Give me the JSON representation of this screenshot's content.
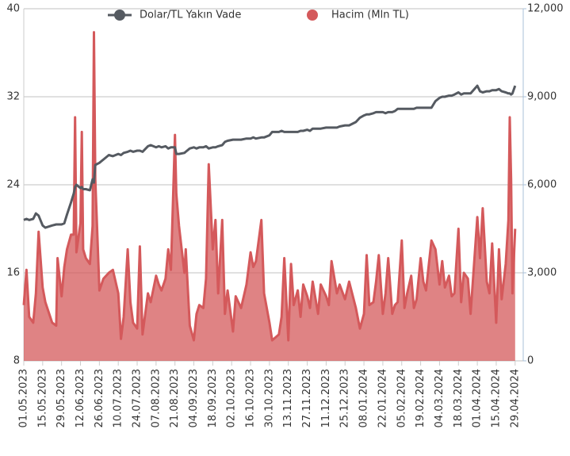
{
  "chart_data": {
    "type": "line-area",
    "x": [
      "01.05.2023",
      "03.05.2023",
      "05.05.2023",
      "08.05.2023",
      "10.05.2023",
      "12.05.2023",
      "15.05.2023",
      "17.05.2023",
      "22.05.2023",
      "25.05.2023",
      "26.05.2023",
      "29.05.2023",
      "31.05.2023",
      "02.06.2023",
      "05.06.2023",
      "07.06.2023",
      "08.06.2023",
      "09.06.2023",
      "12.06.2023",
      "13.06.2023",
      "14.06.2023",
      "16.06.2023",
      "19.06.2023",
      "21.06.2023",
      "22.06.2023",
      "23.06.2023",
      "26.06.2023",
      "29.06.2023",
      "03.07.2023",
      "06.07.2023",
      "10.07.2023",
      "12.07.2023",
      "14.07.2023",
      "17.07.2023",
      "19.07.2023",
      "21.07.2023",
      "24.07.2023",
      "26.07.2023",
      "28.07.2023",
      "01.08.2023",
      "03.08.2023",
      "07.08.2023",
      "09.08.2023",
      "11.08.2023",
      "14.08.2023",
      "16.08.2023",
      "18.08.2023",
      "21.08.2023",
      "22.08.2023",
      "24.08.2023",
      "28.08.2023",
      "29.08.2023",
      "01.09.2023",
      "04.09.2023",
      "06.09.2023",
      "08.09.2023",
      "11.09.2023",
      "13.09.2023",
      "15.09.2023",
      "18.09.2023",
      "20.09.2023",
      "22.09.2023",
      "25.09.2023",
      "27.09.2023",
      "29.09.2023",
      "03.10.2023",
      "05.10.2023",
      "09.10.2023",
      "13.10.2023",
      "16.10.2023",
      "18.10.2023",
      "20.10.2023",
      "24.10.2023",
      "26.10.2023",
      "30.10.2023",
      "01.11.2023",
      "06.11.2023",
      "08.11.2023",
      "10.11.2023",
      "13.11.2023",
      "15.11.2023",
      "17.11.2023",
      "20.11.2023",
      "22.11.2023",
      "24.11.2023",
      "27.11.2023",
      "29.11.2023",
      "01.12.2023",
      "05.12.2023",
      "07.12.2023",
      "11.12.2023",
      "13.12.2023",
      "15.12.2023",
      "19.12.2023",
      "21.12.2023",
      "25.12.2023",
      "28.12.2023",
      "02.01.2024",
      "05.01.2024",
      "08.01.2024",
      "10.01.2024",
      "12.01.2024",
      "15.01.2024",
      "17.01.2024",
      "19.01.2024",
      "22.01.2024",
      "24.01.2024",
      "26.01.2024",
      "29.01.2024",
      "31.01.2024",
      "02.02.2024",
      "05.02.2024",
      "07.02.2024",
      "09.02.2024",
      "12.02.2024",
      "14.02.2024",
      "16.02.2024",
      "19.02.2024",
      "21.02.2024",
      "23.02.2024",
      "27.02.2024",
      "01.03.2024",
      "04.03.2024",
      "06.03.2024",
      "08.03.2024",
      "11.03.2024",
      "13.03.2024",
      "15.03.2024",
      "18.03.2024",
      "20.03.2024",
      "22.03.2024",
      "25.03.2024",
      "27.03.2024",
      "01.04.2024",
      "03.04.2024",
      "05.04.2024",
      "08.04.2024",
      "10.04.2024",
      "12.04.2024",
      "15.04.2024",
      "17.04.2024",
      "19.04.2024",
      "22.04.2024",
      "24.04.2024",
      "25.04.2024",
      "26.04.2024",
      "27.04.2024",
      "29.04.2024"
    ],
    "series": [
      {
        "name": "Dolar/TL Yakın Vade",
        "color": "#555a61",
        "values": [
          20.8,
          20.9,
          20.8,
          20.9,
          21.4,
          21.2,
          20.3,
          20.1,
          20.3,
          20.4,
          20.4,
          20.4,
          20.5,
          21.3,
          22.4,
          23.2,
          23.8,
          24.0,
          23.7,
          23.8,
          23.6,
          23.6,
          23.5,
          24.5,
          24.2,
          25.8,
          26.0,
          26.3,
          26.7,
          26.6,
          26.8,
          26.7,
          26.9,
          27.0,
          27.1,
          27.0,
          27.1,
          27.1,
          27.0,
          27.5,
          27.6,
          27.4,
          27.5,
          27.4,
          27.5,
          27.3,
          27.4,
          27.4,
          26.8,
          26.8,
          26.9,
          27.0,
          27.3,
          27.4,
          27.3,
          27.4,
          27.4,
          27.5,
          27.3,
          27.4,
          27.4,
          27.5,
          27.6,
          27.9,
          28.0,
          28.1,
          28.1,
          28.1,
          28.2,
          28.2,
          28.3,
          28.2,
          28.3,
          28.3,
          28.5,
          28.8,
          28.8,
          28.9,
          28.8,
          28.8,
          28.8,
          28.8,
          28.8,
          28.9,
          28.9,
          29.0,
          28.9,
          29.1,
          29.1,
          29.1,
          29.2,
          29.2,
          29.2,
          29.2,
          29.3,
          29.4,
          29.4,
          29.7,
          30.1,
          30.3,
          30.4,
          30.4,
          30.5,
          30.6,
          30.6,
          30.6,
          30.5,
          30.6,
          30.6,
          30.7,
          30.9,
          30.9,
          30.9,
          30.9,
          30.9,
          30.9,
          31.0,
          31.0,
          31.0,
          31.0,
          31.0,
          31.6,
          31.9,
          32.0,
          32.0,
          32.1,
          32.1,
          32.2,
          32.4,
          32.2,
          32.3,
          32.3,
          32.3,
          33.0,
          32.5,
          32.4,
          32.5,
          32.5,
          32.6,
          32.6,
          32.7,
          32.5,
          32.4,
          32.3,
          32.3,
          32.2,
          32.3,
          33.0
        ]
      },
      {
        "name": "Hacim (Mln TL)",
        "color": "#d4595b",
        "axis": "y2",
        "values": [
          1900,
          3100,
          1500,
          1300,
          2300,
          4400,
          2500,
          2000,
          1300,
          1200,
          3500,
          2200,
          3200,
          3800,
          4300,
          4300,
          8300,
          3700,
          4700,
          7800,
          3800,
          3500,
          3300,
          4600,
          11200,
          6200,
          2400,
          2800,
          3000,
          3100,
          2300,
          750,
          1500,
          3800,
          2000,
          1300,
          1100,
          3900,
          900,
          2300,
          2000,
          2900,
          2600,
          2400,
          2800,
          3800,
          3100,
          7700,
          5700,
          4600,
          3000,
          3800,
          1200,
          700,
          1600,
          1900,
          1800,
          2800,
          6700,
          3800,
          4800,
          2300,
          4800,
          1600,
          2400,
          1000,
          2200,
          1800,
          2600,
          3700,
          3200,
          3400,
          4800,
          2300,
          1300,
          700,
          900,
          1500,
          3500,
          700,
          3300,
          1900,
          2400,
          1500,
          2600,
          2200,
          1800,
          2700,
          1600,
          2600,
          2200,
          1900,
          3400,
          2300,
          2600,
          2100,
          2700,
          1800,
          1100,
          1600,
          3600,
          1900,
          2000,
          2700,
          3600,
          1600,
          2300,
          3500,
          1600,
          1900,
          2000,
          4100,
          1800,
          2300,
          2900,
          1800,
          2100,
          3500,
          2700,
          2400,
          4100,
          3800,
          2600,
          3400,
          2500,
          2900,
          2200,
          2300,
          4500,
          2000,
          3000,
          2800,
          1600,
          4900,
          3500,
          5200,
          2700,
          2300,
          4000,
          1300,
          3800,
          2100,
          3300,
          4800,
          8300,
          6200,
          2300,
          4500
        ]
      }
    ],
    "xlim": [
      "01.05.2023",
      "05.05.2024"
    ],
    "xticks": [
      "01.05.2023",
      "15.05.2023",
      "29.05.2023",
      "12.06.2023",
      "26.06.2023",
      "10.07.2023",
      "24.07.2023",
      "07.08.2023",
      "21.08.2023",
      "04.09.2023",
      "18.09.2023",
      "02.10.2023",
      "16.10.2023",
      "30.10.2023",
      "13.11.2023",
      "27.11.2023",
      "11.12.2023",
      "25.12.2023",
      "08.01.2024",
      "22.01.2024",
      "05.02.2024",
      "19.02.2024",
      "04.03.2024",
      "18.03.2024",
      "01.04.2024",
      "15.04.2024",
      "29.04.2024"
    ],
    "ylim": [
      8,
      40
    ],
    "yticks": [
      8,
      16,
      24,
      32,
      40
    ],
    "y2lim": [
      0,
      12000
    ],
    "y2ticks": [
      0,
      {
        "value": 3000,
        "label": "3,000"
      },
      {
        "value": 6000,
        "label": "6,000"
      },
      {
        "value": 9000,
        "label": "9,000"
      },
      {
        "value": 12000,
        "label": "12,000"
      }
    ],
    "grid": true,
    "legend": "top"
  }
}
